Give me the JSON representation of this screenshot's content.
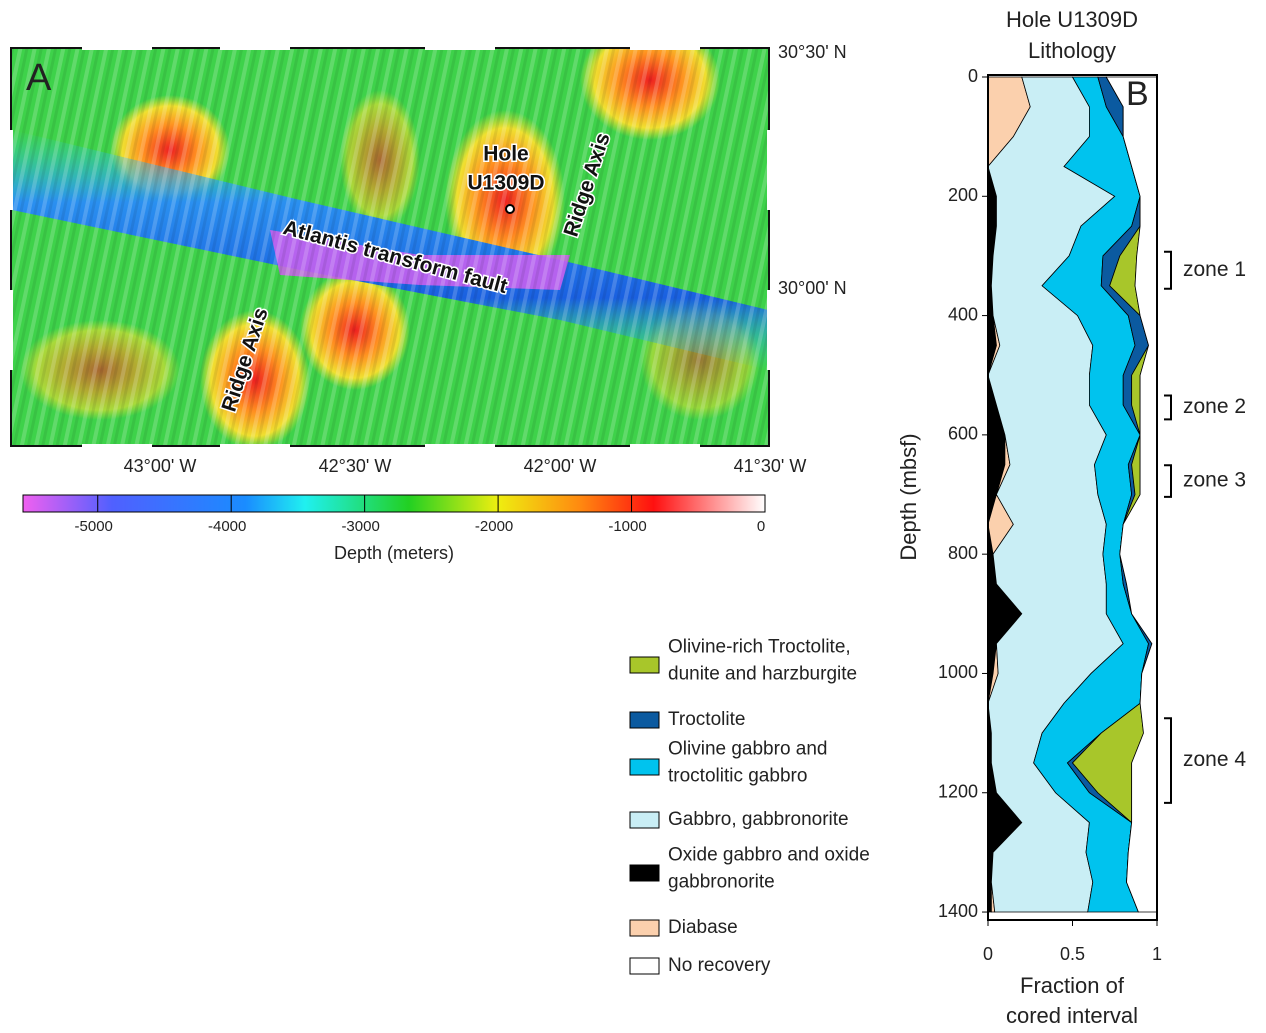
{
  "map": {
    "panel_label": "A",
    "labels": [
      "Hole",
      "U1309D",
      "Atlantis transform fault",
      "Ridge Axis",
      "Ridge Axis"
    ],
    "lat_labels": [
      "30°30' N",
      "30°00' N"
    ],
    "lon_labels": [
      "43°00' W",
      "42°30' W",
      "42°00' W",
      "41°30' W"
    ],
    "colorbar": {
      "label": "Depth (meters)",
      "lim": [
        -5560,
        0
      ],
      "ticks": [
        -5000,
        -4000,
        -3000,
        -2000,
        -1000,
        0
      ]
    }
  },
  "chart_data": {
    "type": "area",
    "stacked": true,
    "orientation": "horizontal",
    "panel_label": "B",
    "title": [
      "Hole U1309D",
      "Lithology"
    ],
    "xlabel": [
      "Fraction of",
      "cored interval"
    ],
    "ylabel": "Depth (mbsf)",
    "xlim": [
      0,
      1
    ],
    "xticks": [
      0,
      0.5,
      1
    ],
    "ylim": [
      0,
      1410
    ],
    "yticks": [
      0,
      200,
      400,
      600,
      800,
      1000,
      1200,
      1400
    ],
    "y_inverted": true,
    "depths": [
      0,
      50,
      100,
      150,
      200,
      250,
      300,
      350,
      400,
      450,
      500,
      550,
      600,
      650,
      700,
      750,
      800,
      850,
      900,
      950,
      1000,
      1050,
      1100,
      1150,
      1200,
      1250,
      1300,
      1350,
      1400
    ],
    "series": [
      {
        "name": "Oxide gabbro and oxide gabbronorite",
        "color": "#000000",
        "values": [
          0,
          0,
          0,
          0,
          0.05,
          0.05,
          0.03,
          0.02,
          0.03,
          0.05,
          0,
          0.05,
          0.1,
          0.1,
          0.05,
          0,
          0.03,
          0.05,
          0.2,
          0.05,
          0.03,
          0,
          0.02,
          0.02,
          0.05,
          0.2,
          0.03,
          0.02,
          0.02
        ]
      },
      {
        "name": "Diabase",
        "color": "#fbd0ad",
        "values": [
          0.2,
          0.25,
          0.15,
          0,
          0,
          0,
          0,
          0,
          0,
          0.02,
          0,
          0,
          0,
          0.03,
          0,
          0.15,
          0,
          0,
          0,
          0,
          0.03,
          0,
          0,
          0,
          0,
          0,
          0,
          0,
          0.02
        ]
      },
      {
        "name": "Gabbro, gabbronorite",
        "color": "#c9eef5",
        "values": [
          0.3,
          0.35,
          0.45,
          0.45,
          0.7,
          0.5,
          0.45,
          0.3,
          0.5,
          0.55,
          0.6,
          0.55,
          0.6,
          0.5,
          0.6,
          0.55,
          0.65,
          0.65,
          0.5,
          0.75,
          0.55,
          0.45,
          0.3,
          0.25,
          0.35,
          0.4,
          0.55,
          0.6,
          0.55
        ]
      },
      {
        "name": "Olivine gabbro and troctolitic gabbro",
        "color": "#00c3ee",
        "values": [
          0.15,
          0.1,
          0.2,
          0.4,
          0.15,
          0.3,
          0.2,
          0.35,
          0.3,
          0.25,
          0.2,
          0.2,
          0.2,
          0.2,
          0.2,
          0.1,
          0.1,
          0.1,
          0.15,
          0.15,
          0.3,
          0.45,
          0.35,
          0.2,
          0.2,
          0.25,
          0.25,
          0.2,
          0.3
        ]
      },
      {
        "name": "Troctolite",
        "color": "#0b5aa0",
        "values": [
          0.05,
          0.1,
          0,
          0,
          0,
          0.05,
          0.1,
          0.05,
          0.07,
          0.08,
          0.05,
          0.05,
          0,
          0.02,
          0.02,
          0,
          0,
          0.02,
          0,
          0.02,
          0,
          0,
          0,
          0.03,
          0.05,
          0,
          0,
          0,
          0
        ]
      },
      {
        "name": "Olivine-rich Troctolite, dunite and harzburgite",
        "color": "#a8c62a",
        "values": [
          0,
          0,
          0,
          0,
          0,
          0,
          0.1,
          0.15,
          0,
          0,
          0.05,
          0.05,
          0,
          0.05,
          0.03,
          0,
          0,
          0,
          0,
          0,
          0,
          0,
          0.25,
          0.35,
          0.2,
          0,
          0,
          0,
          0
        ]
      },
      {
        "name": "No recovery",
        "color": "#ffffff",
        "values": [
          0.3,
          0.2,
          0.2,
          0.15,
          0.1,
          0.1,
          0.12,
          0.13,
          0.1,
          0.05,
          0.1,
          0.1,
          0.1,
          0.1,
          0.1,
          0.2,
          0.22,
          0.18,
          0.15,
          0.03,
          0.09,
          0.1,
          0.08,
          0.15,
          0.15,
          0.15,
          0.17,
          0.18,
          0.11
        ]
      }
    ],
    "zones": [
      {
        "label": "zone 1",
        "range": [
          293,
          355
        ]
      },
      {
        "label": "zone 2",
        "range": [
          534,
          574
        ]
      },
      {
        "label": "zone 3",
        "range": [
          651,
          704
        ]
      },
      {
        "label": "zone 4",
        "range": [
          1075,
          1217
        ]
      }
    ]
  }
}
